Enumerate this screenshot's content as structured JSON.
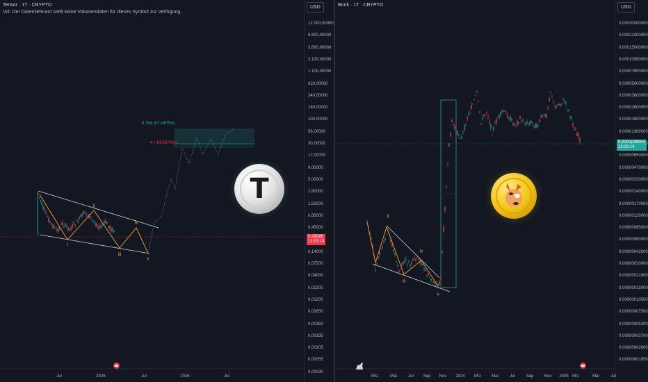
{
  "left_panel": {
    "title": "Tensor · 1T · CRYPTO",
    "subtitle": "Vol: Der Datenlieferant stellt keine Volumendaten für dieses Symbol zur Verfügung.",
    "currency": "USD",
    "y_ticks": [
      "12.000,00000",
      "6.800,00000",
      "3.800,00000",
      "2.100,00000",
      "1.100,00000",
      "620,00000",
      "340,00000",
      "180,00000",
      "100,00000",
      "56,00000",
      "30,00000",
      "17,00000",
      "9,00000",
      "5,00000",
      "2,80000",
      "1,50000",
      "0,85000",
      "0,45000",
      "0,25000",
      "0,14000",
      "0,07500",
      "0,04000",
      "0,02200",
      "0,01200",
      "0,00650",
      "0,00350",
      "0,00195",
      "0,00105",
      "0,00055",
      "0,00030"
    ],
    "x_ticks": [
      "Jul",
      "2025",
      "Jul",
      "2026",
      "Jul"
    ],
    "price_tag": "0,28(89)",
    "price_tag_time": "12:03:14",
    "target_up_label": "4,764 (67,0405%)",
    "target_down_label": "-4 (-14,5879%)",
    "wave_labels": [
      "i",
      "ii",
      "iii",
      "iv",
      "v"
    ],
    "coin_letter": "T",
    "colors": {
      "candle_up": "#26a69a",
      "candle_down": "#ef5350",
      "wave": "#f0a32a",
      "trendline": "#d1d4dc",
      "price_tag": "#f23645",
      "target_up": "#26a69a",
      "target_down": "#f23645"
    }
  },
  "right_panel": {
    "title": "Bonk · 1T · CRYPTO",
    "currency": "USD",
    "y_ticks": [
      "0,00030000000",
      "0,00021000000",
      "0,00015000000",
      "0,00010500000",
      "0,00007500000",
      "0,00005000000",
      "0,00003600000",
      "0,00002600000",
      "0,00001800000",
      "0,00001300000",
      "0,00000900000",
      "0,00000650000",
      "0,00000470000",
      "0,00000330000",
      "0,00000240000",
      "0,00000170000",
      "0,00000120000",
      "0,00000085000",
      "0,00000060000",
      "0,00000042000",
      "0,00000030000",
      "0,00000021000",
      "0,00000015000",
      "0,00000010500",
      "0,00000007500",
      "0,00000005300",
      "0,00000003700",
      "0,00000002600",
      "0,00000001850"
    ],
    "x_ticks": [
      "Mrz",
      "Mai",
      "Jul",
      "Sep",
      "Nov",
      "2024",
      "Mrz",
      "Mai",
      "Jul",
      "Sep",
      "Nov",
      "2025",
      "Mrz",
      "Mai",
      "Jul"
    ],
    "price_tag": "0,0000(09984)",
    "price_tag_time": "12:03:14",
    "wave_labels": [
      "i",
      "ii",
      "iii",
      "iv",
      "v"
    ],
    "colors": {
      "candle_up": "#26a69a",
      "candle_down": "#ef5350",
      "wave": "#f0a32a",
      "trendline": "#d1d4dc",
      "price_tag": "#26a69a",
      "box": "#26a69a"
    }
  },
  "chart_data": [
    {
      "type": "line",
      "title": "Tensor · 1T · CRYPTO",
      "series": [
        {
          "x": [
            "2024-05",
            "2024-06",
            "2024-07",
            "2024-08",
            "2024-09",
            "2024-10",
            "2024-11",
            "2024-12",
            "2025-01",
            "2025-02",
            "2025-03",
            "2025-04",
            "2025-05"
          ],
          "values": [
            3.0,
            0.55,
            0.32,
            0.52,
            0.38,
            0.42,
            0.75,
            0.55,
            0.32,
            0.55,
            0.72,
            0.48,
            0.28
          ]
        }
      ],
      "ylim": [
        0.0003,
        12000
      ],
      "yscale": "log",
      "wave_points": [
        {
          "label": "i",
          "x": "2024-06",
          "y": 0.3
        },
        {
          "label": "ii",
          "x": "2024-11",
          "y": 0.9
        },
        {
          "label": "iii",
          "x": "2025-02",
          "y": 0.2
        },
        {
          "label": "iv",
          "x": "2025-06",
          "y": 0.55
        },
        {
          "label": "v",
          "x": "2025-07",
          "y": 0.14
        }
      ]
    },
    {
      "type": "line",
      "title": "Bonk · 1T · CRYPTO",
      "series": [
        {
          "x": [
            "2023-02",
            "2023-03",
            "2023-04",
            "2023-05",
            "2023-06",
            "2023-07",
            "2023-08",
            "2023-09",
            "2023-10",
            "2023-11",
            "2023-12",
            "2024-01",
            "2024-02",
            "2024-03",
            "2024-04",
            "2024-05",
            "2024-06",
            "2024-07",
            "2024-08",
            "2024-09",
            "2024-10",
            "2024-11",
            "2024-12",
            "2025-01",
            "2025-02",
            "2025-03"
          ],
          "values": [
            7e-07,
            3e-07,
            5e-07,
            2e-07,
            3.5e-07,
            2.5e-07,
            2e-07,
            1.5e-07,
            2e-07,
            1e-06,
            1.2e-05,
            1.4e-05,
            1.2e-05,
            3.5e-05,
            2.8e-05,
            2.5e-05,
            2.2e-05,
            2.6e-05,
            2e-05,
            1.8e-05,
            2.2e-05,
            5.5e-05,
            4e-05,
            3.5e-05,
            2e-05,
            1e-05
          ]
        }
      ],
      "ylim": [
        1.85e-08,
        0.0003
      ],
      "yscale": "log"
    }
  ]
}
